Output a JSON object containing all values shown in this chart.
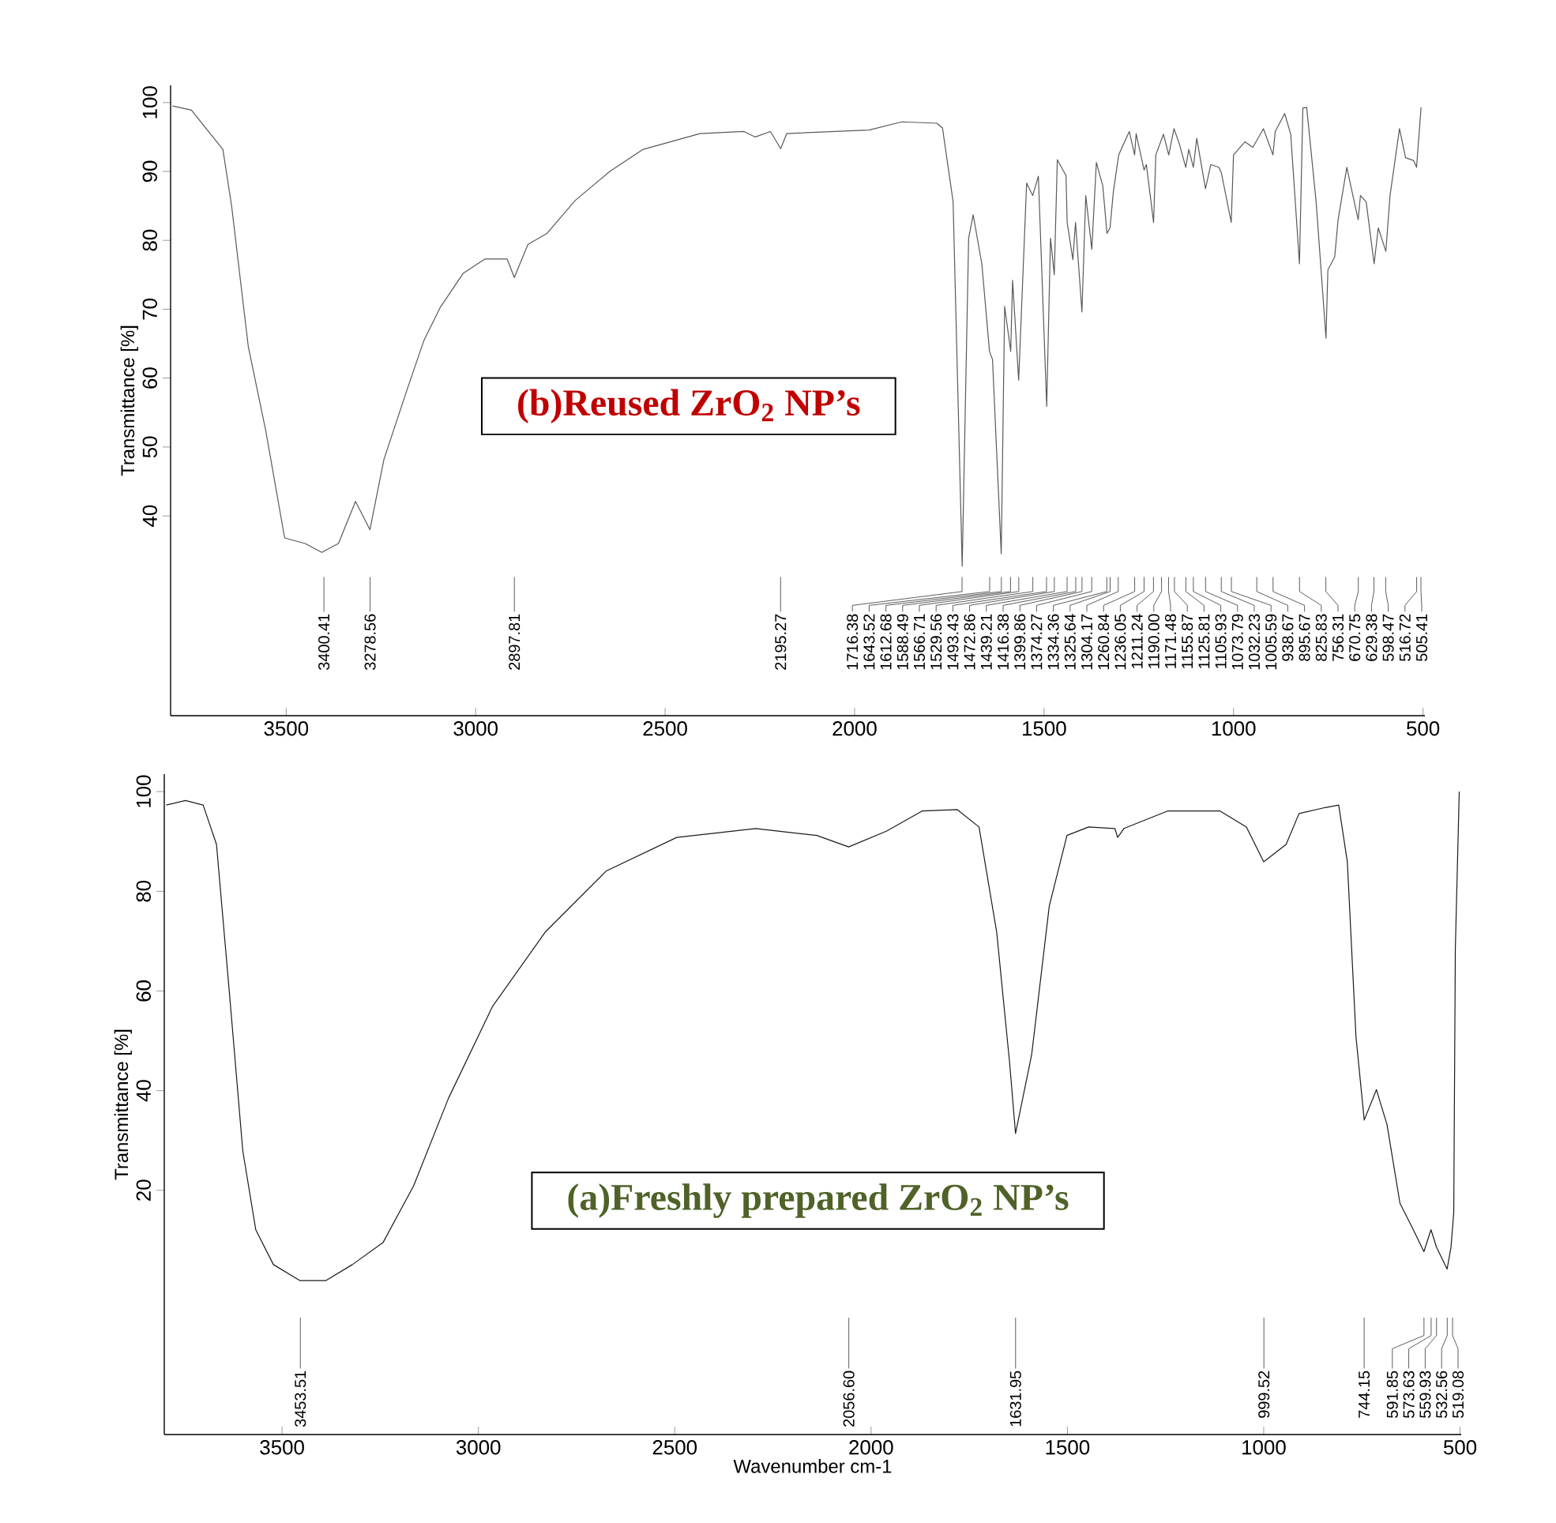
{
  "chart_data": [
    {
      "type": "line",
      "title": "(b)Reused ZrO$_{2}$ NP’s",
      "ylabel": "Transmittance [%]",
      "xlim": [
        3805,
        495
      ],
      "ylim": [
        11,
        102.5
      ],
      "xticks": [
        3500,
        3000,
        2500,
        2000,
        1500,
        1000,
        500
      ],
      "yticks": [
        40,
        50,
        60,
        70,
        80,
        90,
        100
      ],
      "series": [
        {
          "color": "#595959",
          "x": [
            3800,
            3750,
            3667,
            3644,
            3600,
            3554,
            3504,
            3450,
            3406,
            3362,
            3317,
            3279,
            3242,
            3183,
            3137,
            3093,
            3033,
            2975,
            2917,
            2898,
            2862,
            2812,
            2737,
            2646,
            2558,
            2408,
            2292,
            2262,
            2222,
            2195,
            2179,
            1962,
            1875,
            1783,
            1768,
            1740,
            1716,
            1699,
            1687,
            1664,
            1644,
            1636,
            1613,
            1604,
            1588,
            1583,
            1567,
            1546,
            1530,
            1515,
            1493,
            1483,
            1473,
            1465,
            1442,
            1439,
            1424,
            1417,
            1400,
            1390,
            1374,
            1362,
            1345,
            1334,
            1326,
            1317,
            1303,
            1275,
            1261,
            1257,
            1236,
            1230,
            1211,
            1205,
            1185,
            1171,
            1157,
            1143,
            1126,
            1118,
            1106,
            1097,
            1074,
            1060,
            1039,
            1032,
            1006,
            1000,
            970,
            949,
            921,
            896,
            890,
            865,
            849,
            826,
            817,
            807,
            782,
            756,
            751,
            733,
            724,
            701,
            685,
            671,
            665,
            650,
            629,
            618,
            598,
            587,
            562,
            546,
            525,
            517,
            505
          ],
          "values": [
            99.5,
            98.9,
            93.2,
            85,
            64.6,
            52.4,
            36.8,
            36,
            34.7,
            36,
            42.1,
            38,
            48.2,
            58,
            65.4,
            70.3,
            75.2,
            77.3,
            77.3,
            74.6,
            79.4,
            81,
            85.8,
            90,
            93.2,
            95.5,
            95.8,
            95,
            95.8,
            93.3,
            95.5,
            96,
            97.2,
            97,
            96.3,
            85.6,
            32.7,
            80.3,
            83.7,
            76.5,
            63.9,
            62.7,
            34.5,
            70.4,
            63.9,
            74.2,
            59.7,
            88.3,
            86.5,
            89.3,
            55.9,
            80.3,
            75,
            91.7,
            89.4,
            82.6,
            77.2,
            82.6,
            69.6,
            86.5,
            78.7,
            91.3,
            87.9,
            81,
            81.8,
            87.1,
            92.4,
            95.8,
            92.4,
            95.5,
            90.2,
            91,
            82.6,
            92.4,
            95.4,
            92.4,
            96.2,
            94,
            90.6,
            93.2,
            90.6,
            94.8,
            87.5,
            91,
            90.6,
            89.8,
            82.6,
            92.4,
            94.3,
            93.5,
            96.2,
            92.4,
            95.8,
            98.4,
            95.4,
            76.6,
            99.2,
            99.3,
            85.6,
            65.8,
            75.7,
            77.6,
            83,
            90.6,
            86.5,
            83,
            86.5,
            85.6,
            76.6,
            81.8,
            78.4,
            86.5,
            96.2,
            92,
            91.6,
            90.6,
            99.3
          ]
        }
      ],
      "annotations": [
        {
          "text": "3400.41",
          "x": 3400.41
        },
        {
          "text": "3278.56",
          "x": 3278.56
        },
        {
          "text": "2897.81",
          "x": 2897.81
        },
        {
          "text": "2195.27",
          "x": 2195.27
        },
        {
          "text": "1716.38",
          "x": 1716.38
        },
        {
          "text": "1643.52",
          "x": 1643.52
        },
        {
          "text": "1612.68",
          "x": 1612.68
        },
        {
          "text": "1588.49",
          "x": 1588.49
        },
        {
          "text": "1566.71",
          "x": 1566.71
        },
        {
          "text": "1529.56",
          "x": 1529.56
        },
        {
          "text": "1493.43",
          "x": 1493.43
        },
        {
          "text": "1472.86",
          "x": 1472.86
        },
        {
          "text": "1439.21",
          "x": 1439.21
        },
        {
          "text": "1416.38",
          "x": 1416.38
        },
        {
          "text": "1399.86",
          "x": 1399.86
        },
        {
          "text": "1374.27",
          "x": 1374.27
        },
        {
          "text": "1334.36",
          "x": 1334.36
        },
        {
          "text": "1325.64",
          "x": 1325.64
        },
        {
          "text": "1304.17",
          "x": 1304.17
        },
        {
          "text": "1260.84",
          "x": 1260.84
        },
        {
          "text": "1236.05",
          "x": 1236.05
        },
        {
          "text": "1211.24",
          "x": 1211.24
        },
        {
          "text": "1190.00",
          "x": 1190.0
        },
        {
          "text": "1171.48",
          "x": 1171.48
        },
        {
          "text": "1155.87",
          "x": 1155.87
        },
        {
          "text": "1125.81",
          "x": 1125.81
        },
        {
          "text": "1105.93",
          "x": 1105.93
        },
        {
          "text": "1073.79",
          "x": 1073.79
        },
        {
          "text": "1032.23",
          "x": 1032.23
        },
        {
          "text": "1005.59",
          "x": 1005.59
        },
        {
          "text": "938.67",
          "x": 938.67
        },
        {
          "text": "895.67",
          "x": 895.67
        },
        {
          "text": "825.83",
          "x": 825.83
        },
        {
          "text": "756.31",
          "x": 756.31
        },
        {
          "text": "670.75",
          "x": 670.75
        },
        {
          "text": "629.38",
          "x": 629.38
        },
        {
          "text": "598.47",
          "x": 598.47
        },
        {
          "text": "516.72",
          "x": 516.72
        },
        {
          "text": "505.41",
          "x": 505.41
        }
      ]
    },
    {
      "type": "line",
      "title": "(a)Freshly prepared ZrO$_{2}$ NP’s",
      "xlabel": "Wavenumber cm-1",
      "ylabel": "Transmittance [%]",
      "xlim": [
        3800,
        497
      ],
      "ylim": [
        -29,
        103.5
      ],
      "xticks": [
        3500,
        3000,
        2500,
        2000,
        1500,
        1000,
        500
      ],
      "yticks": [
        20,
        40,
        60,
        80,
        100
      ],
      "series": [
        {
          "color": "#1a1a1a",
          "x": [
            3795,
            3746,
            3701,
            3667,
            3634,
            3600,
            3567,
            3522,
            3455,
            3388,
            3321,
            3243,
            3165,
            3076,
            2964,
            2830,
            2674,
            2495,
            2294,
            2138,
            2057,
            1960,
            1870,
            1781,
            1725,
            1680,
            1647,
            1632,
            1591,
            1546,
            1501,
            1446,
            1379,
            1372,
            1356,
            1245,
            1111,
            1044,
            1000,
            943,
            910,
            843,
            809,
            787,
            765,
            744,
            713,
            686,
            653,
            619,
            592,
            574,
            560,
            533,
            523,
            516,
            512,
            502
          ],
          "values": [
            97.3,
            98.2,
            97.3,
            89.4,
            59.5,
            27.9,
            12.1,
            5.1,
            1.9,
            1.9,
            5.1,
            9.5,
            20.9,
            38.5,
            56.9,
            71.8,
            84.1,
            90.8,
            92.6,
            91.2,
            88.9,
            92.1,
            96.1,
            96.4,
            92.9,
            71.8,
            45.5,
            31.4,
            47.2,
            77.1,
            91.2,
            92.9,
            92.6,
            90.8,
            92.6,
            96.1,
            96.1,
            92.9,
            85.9,
            89.4,
            95.6,
            96.8,
            97.3,
            85.9,
            50.8,
            34.1,
            40.2,
            33.2,
            17.4,
            12.1,
            7.7,
            12.1,
            8.6,
            4.2,
            8.6,
            15.6,
            68.3,
            100
          ]
        }
      ],
      "annotations": [
        {
          "text": "3453.51",
          "x": 3453.51
        },
        {
          "text": "2056.60",
          "x": 2056.6
        },
        {
          "text": "1631.95",
          "x": 1631.95
        },
        {
          "text": "999.52",
          "x": 999.52
        },
        {
          "text": "744.15",
          "x": 744.15
        },
        {
          "text": "591.85",
          "x": 591.85
        },
        {
          "text": "573.63",
          "x": 573.63
        },
        {
          "text": "559.93",
          "x": 559.93
        },
        {
          "text": "532.56",
          "x": 532.56
        },
        {
          "text": "519.08",
          "x": 519.08
        }
      ]
    }
  ]
}
